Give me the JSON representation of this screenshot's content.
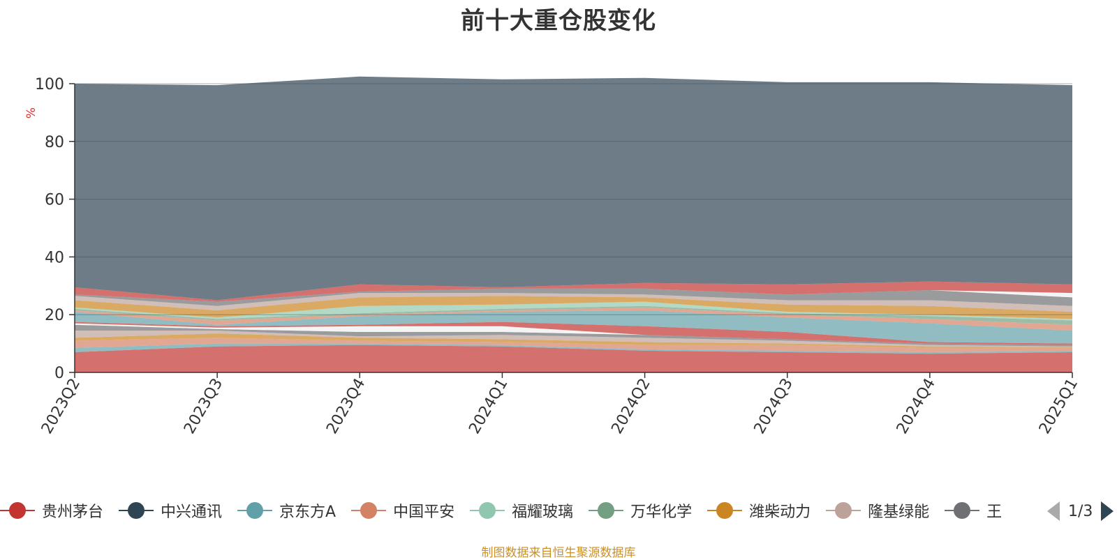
{
  "title": "前十大重仓股变化",
  "source_note": "制图数据来自恒生聚源数据库",
  "legend_pager": {
    "text": "1/3"
  },
  "legend": [
    {
      "name": "贵州茅台",
      "color": "#c23531"
    },
    {
      "name": "中兴通讯",
      "color": "#2f4554"
    },
    {
      "name": "京东方A",
      "color": "#61a0a8"
    },
    {
      "name": "中国平安",
      "color": "#d48265"
    },
    {
      "name": "福耀玻璃",
      "color": "#91c7ae"
    },
    {
      "name": "万华化学",
      "color": "#749f83"
    },
    {
      "name": "潍柴动力",
      "color": "#ca8622"
    },
    {
      "name": "隆基绿能",
      "color": "#bda29a"
    },
    {
      "name": "王",
      "color": "#6e7074"
    }
  ],
  "chart_data": {
    "type": "area",
    "stacked": true,
    "ylabel": "%",
    "ylim": [
      0,
      100
    ],
    "yticks": [
      0,
      20,
      40,
      60,
      80,
      100
    ],
    "categories": [
      "2023Q2",
      "2023Q3",
      "2023Q4",
      "2024Q1",
      "2024Q2",
      "2024Q3",
      "2024Q4",
      "2025Q1"
    ],
    "series": [
      {
        "name": "贵州茅台",
        "color": "#c23531",
        "values": [
          7.0,
          9.0,
          9.5,
          9.0,
          7.5,
          7.0,
          6.5,
          7.0
        ]
      },
      {
        "color": "#61a0a8",
        "values": [
          1.5,
          1.0,
          0.5,
          0.5,
          0.5,
          0.5,
          0.5,
          0.5
        ]
      },
      {
        "color": "#d48265",
        "values": [
          2.5,
          2.0,
          1.0,
          1.0,
          1.5,
          2.0,
          1.5,
          1.0
        ]
      },
      {
        "color": "#ca8622",
        "values": [
          1.0,
          1.5,
          1.0,
          1.0,
          1.0,
          0.5,
          0.5,
          0.3
        ]
      },
      {
        "color": "#bda29a",
        "values": [
          2.5,
          1.0,
          0.5,
          1.5,
          1.5,
          1.0,
          0.5,
          0.2
        ]
      },
      {
        "color": "#6e7074",
        "values": [
          2.0,
          0.5,
          1.5,
          1.0,
          1.0,
          0.5,
          0.5,
          0.5
        ]
      },
      {
        "color": "#f0f0f0",
        "values": [
          0.5,
          0.5,
          2.0,
          2.0,
          0.0,
          0.0,
          0.0,
          0.0
        ]
      },
      {
        "color": "#c23531",
        "values": [
          0.5,
          0.5,
          0.5,
          1.5,
          3.0,
          2.5,
          0.5,
          0.5
        ]
      },
      {
        "color": "#61a0a8",
        "values": [
          3.5,
          0.5,
          3.0,
          3.5,
          5.5,
          5.0,
          6.5,
          4.5
        ]
      },
      {
        "color": "#d48265",
        "values": [
          0.5,
          1.5,
          0.5,
          0.5,
          1.0,
          1.0,
          1.5,
          2.0
        ]
      },
      {
        "color": "#749f83",
        "values": [
          0.5,
          0.5,
          0.5,
          0.5,
          0.5,
          0.5,
          1.0,
          1.5
        ]
      },
      {
        "color": "#91c7ae",
        "values": [
          0.5,
          0.5,
          2.5,
          1.5,
          1.5,
          0.5,
          0.5,
          0.5
        ]
      },
      {
        "color": "#ca8622",
        "values": [
          2.5,
          2.5,
          3.0,
          3.0,
          1.5,
          2.5,
          3.0,
          2.5
        ]
      },
      {
        "color": "#bda29a",
        "values": [
          1.5,
          1.5,
          1.5,
          1.0,
          1.0,
          1.5,
          2.0,
          2.0
        ]
      },
      {
        "color": "#6e7074",
        "values": [
          0.5,
          1.5,
          0.5,
          1.5,
          2.0,
          2.0,
          3.5,
          3.0
        ]
      },
      {
        "color": "#f0f0f0",
        "values": [
          0.0,
          0.0,
          0.0,
          0.0,
          0.0,
          0.0,
          0.0,
          1.5
        ]
      },
      {
        "color": "#c23531",
        "values": [
          2.5,
          0.5,
          2.5,
          0.5,
          2.0,
          3.5,
          3.0,
          3.0
        ]
      },
      {
        "color": "#2f4554",
        "values": [
          70.5,
          74.5,
          72.0,
          72.0,
          71.0,
          70.0,
          69.0,
          69.0
        ]
      }
    ]
  }
}
